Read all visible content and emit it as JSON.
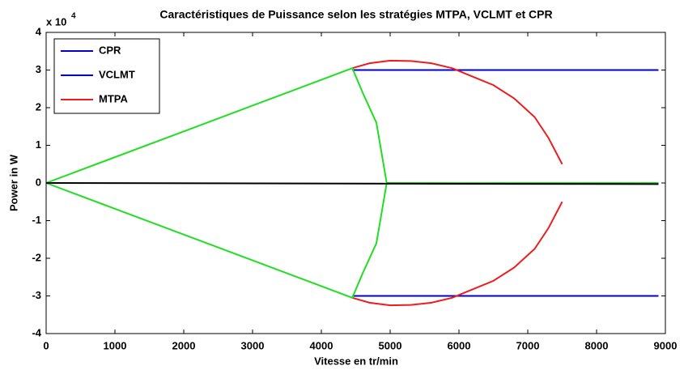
{
  "chart_data": {
    "type": "line",
    "title": "Caractéristiques de Puissance selon les stratégies MTPA, VCLMT et CPR",
    "xlabel": "Vitesse en tr/min",
    "ylabel": "Power in W",
    "y_multiplier_base": "x 10",
    "y_multiplier_exponent": "4",
    "xlim": [
      0,
      9000
    ],
    "xticks": [
      0,
      1000,
      2000,
      3000,
      4000,
      5000,
      6000,
      7000,
      8000,
      9000
    ],
    "ylim": [
      -40000,
      40000
    ],
    "yticks": [
      {
        "value": -40000,
        "label": "-4"
      },
      {
        "value": -30000,
        "label": "-3"
      },
      {
        "value": -20000,
        "label": "-2"
      },
      {
        "value": -10000,
        "label": "-1"
      },
      {
        "value": 0,
        "label": "0"
      },
      {
        "value": 10000,
        "label": "1"
      },
      {
        "value": 20000,
        "label": "2"
      },
      {
        "value": 30000,
        "label": "3"
      },
      {
        "value": 40000,
        "label": "4"
      }
    ],
    "grid": false,
    "legend_position": "upper left",
    "series": [
      {
        "name": "CPR",
        "color": "#0000cc",
        "x": [
          4450,
          8900
        ],
        "values": [
          30000,
          30000
        ]
      },
      {
        "name": "VCLMT",
        "color": "#0000cc",
        "x": [
          4450,
          8900
        ],
        "values": [
          -30000,
          -30000
        ]
      },
      {
        "name": "MTPA",
        "color": "#ee1c1c",
        "x": [
          4450,
          4700,
          5000,
          5300,
          5600,
          5900,
          6100,
          6500,
          6800,
          7100,
          7300,
          7500,
          null,
          4450,
          4700,
          5000,
          5300,
          5600,
          5900,
          6100,
          6500,
          6800,
          7100,
          7300,
          7500
        ],
        "values": [
          30500,
          31800,
          32500,
          32400,
          31800,
          30500,
          29000,
          26000,
          22500,
          17500,
          12000,
          5000,
          null,
          -30500,
          -31800,
          -32500,
          -32400,
          -31800,
          -30500,
          -29000,
          -26000,
          -22500,
          -17500,
          -12000,
          -5000
        ]
      },
      {
        "color": "#22dd22",
        "x": [
          0,
          4450,
          4600,
          4800,
          4950,
          8900,
          null,
          0,
          4450,
          4600,
          4800,
          4950
        ],
        "values": [
          0,
          30500,
          24000,
          16000,
          0,
          0,
          null,
          0,
          -30500,
          -24000,
          -16000,
          0
        ]
      },
      {
        "color": "#000000",
        "x": [
          0,
          8900
        ],
        "values": [
          0,
          -300
        ]
      }
    ]
  }
}
